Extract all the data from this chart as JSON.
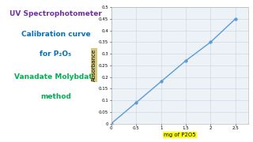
{
  "x": [
    0,
    0.5,
    1.0,
    1.5,
    2.0,
    2.5
  ],
  "y": [
    0,
    0.09,
    0.18,
    0.27,
    0.35,
    0.45
  ],
  "line_color": "#5b9bd5",
  "marker_color": "#5b9bd5",
  "marker_style": "o",
  "marker_size": 2.5,
  "xlabel": "mg of P2O5",
  "xlabel_bg": "#ffff00",
  "ylabel": "Absorbance",
  "ylabel_bg": "#d4c87a",
  "xlim": [
    0,
    2.75
  ],
  "ylim": [
    0,
    0.5
  ],
  "xticks": [
    0,
    0.5,
    1.0,
    1.5,
    2.0,
    2.5
  ],
  "yticks": [
    0,
    0.05,
    0.1,
    0.15,
    0.2,
    0.25,
    0.3,
    0.35,
    0.4,
    0.45,
    0.5
  ],
  "grid_color": "#c5d5e5",
  "bg_color": "#edf2f7",
  "title_lines": [
    "UV Spectrophotometer",
    "Calibration curve",
    "for P₂O₅",
    "Vanadate Molybdate",
    "method"
  ],
  "title_colors": [
    "#7030a0",
    "#0070c0",
    "#0070c0",
    "#00b050",
    "#00b050"
  ],
  "title_fontsizes": [
    6.5,
    6.5,
    6.5,
    6.5,
    6.5
  ],
  "fig_width": 3.2,
  "fig_height": 1.8
}
